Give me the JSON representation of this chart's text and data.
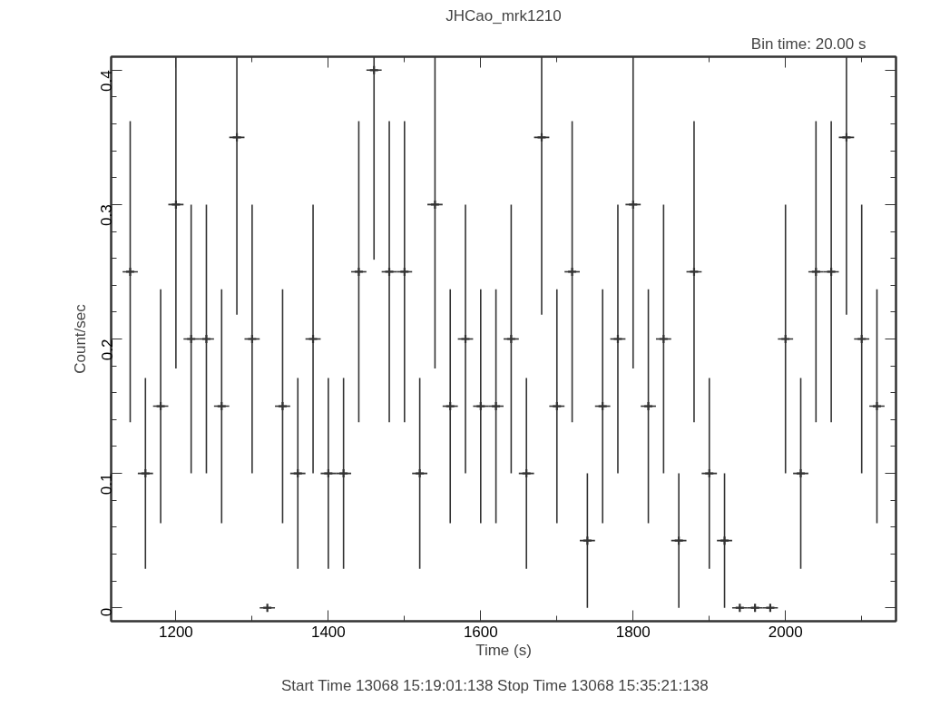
{
  "chart_data": {
    "type": "scatter",
    "title": "JHCao_mrk1210",
    "xlabel": "Time (s)",
    "ylabel": "Count/sec",
    "annotations": [
      "Bin time:    20.00     s",
      "Start Time 13068 15:19:01:138     Stop Time 13068 15:35:21:138"
    ],
    "x": [
      1140,
      1160,
      1180,
      1200,
      1220,
      1240,
      1260,
      1280,
      1300,
      1320,
      1340,
      1360,
      1380,
      1400,
      1420,
      1440,
      1460,
      1480,
      1500,
      1520,
      1540,
      1560,
      1580,
      1600,
      1620,
      1640,
      1660,
      1680,
      1700,
      1720,
      1740,
      1760,
      1780,
      1800,
      1820,
      1840,
      1860,
      1880,
      1900,
      1920,
      1940,
      1960,
      1980,
      2000,
      2020,
      2040,
      2060,
      2080,
      2100,
      2120
    ],
    "series": [
      {
        "color": "#333333",
        "marker": "cross",
        "values": [
          0.25,
          0.1,
          0.15,
          0.3,
          0.2,
          0.2,
          0.15,
          0.35,
          0.2,
          0,
          0.15,
          0.1,
          0.2,
          0.1,
          0.1,
          0.25,
          0.4,
          0.25,
          0.25,
          0.1,
          0.3,
          0.15,
          0.2,
          0.15,
          0.15,
          0.2,
          0.1,
          0.35,
          0.15,
          0.25,
          0.05,
          0.15,
          0.2,
          0.3,
          0.15,
          0.2,
          0.05,
          0.25,
          0.1,
          0.05,
          0,
          0,
          0,
          0.2,
          0.1,
          0.25,
          0.25,
          0.35,
          0.2,
          0.15
        ],
        "errors": [
          0.112,
          0.071,
          0.087,
          [
            0.178,
            0.41
          ],
          0.1,
          0.1,
          0.087,
          [
            0.218,
            0.41
          ],
          0.1,
          null,
          0.087,
          0.071,
          0.1,
          0.071,
          0.071,
          0.112,
          [
            0.259,
            0.41
          ],
          0.112,
          0.112,
          0.071,
          [
            0.178,
            0.41
          ],
          0.087,
          0.1,
          0.087,
          0.087,
          0.1,
          0.071,
          [
            0.218,
            0.41
          ],
          0.087,
          0.112,
          0.05,
          0.087,
          0.1,
          [
            0.178,
            0.41
          ],
          0.087,
          0.1,
          0.05,
          0.112,
          0.071,
          0.05,
          null,
          null,
          null,
          0.1,
          0.071,
          0.112,
          0.112,
          [
            0.218,
            0.41
          ],
          0.1,
          0.087
        ],
        "xerrors": [
          10,
          10,
          10,
          10,
          10,
          10,
          10,
          10,
          10,
          10,
          10,
          10,
          10,
          10,
          10,
          10,
          10,
          10,
          10,
          10,
          10,
          10,
          10,
          10,
          10,
          10,
          10,
          10,
          10,
          10,
          10,
          10,
          10,
          10,
          10,
          10,
          10,
          10,
          10,
          10,
          10,
          10,
          10,
          10,
          10,
          10,
          10,
          10,
          10,
          10
        ]
      }
    ],
    "xlim": [
      1115,
      2145
    ],
    "ylim": [
      -0.01,
      0.41
    ],
    "xticks": [
      1200,
      {
        "value": 1300,
        "label": null
      },
      1400,
      {
        "value": 1500,
        "label": null
      },
      1600,
      {
        "value": 1700,
        "label": null
      },
      1800,
      {
        "value": 1900,
        "label": null
      },
      2000,
      {
        "value": 2100,
        "label": null
      }
    ],
    "yticks": [
      0,
      {
        "value": 0.02,
        "label": null
      },
      {
        "value": 0.04,
        "label": null
      },
      {
        "value": 0.06,
        "label": null
      },
      {
        "value": 0.08,
        "label": null
      },
      0.1,
      {
        "value": 0.12,
        "label": null
      },
      {
        "value": 0.14,
        "label": null
      },
      {
        "value": 0.16,
        "label": null
      },
      {
        "value": 0.18,
        "label": null
      },
      0.2,
      {
        "value": 0.22,
        "label": null
      },
      {
        "value": 0.24,
        "label": null
      },
      {
        "value": 0.26,
        "label": null
      },
      {
        "value": 0.28,
        "label": null
      },
      0.3,
      {
        "value": 0.32,
        "label": null
      },
      {
        "value": 0.34,
        "label": null
      },
      {
        "value": 0.36,
        "label": null
      },
      {
        "value": 0.38,
        "label": null
      },
      0.4
    ],
    "grid": false
  }
}
